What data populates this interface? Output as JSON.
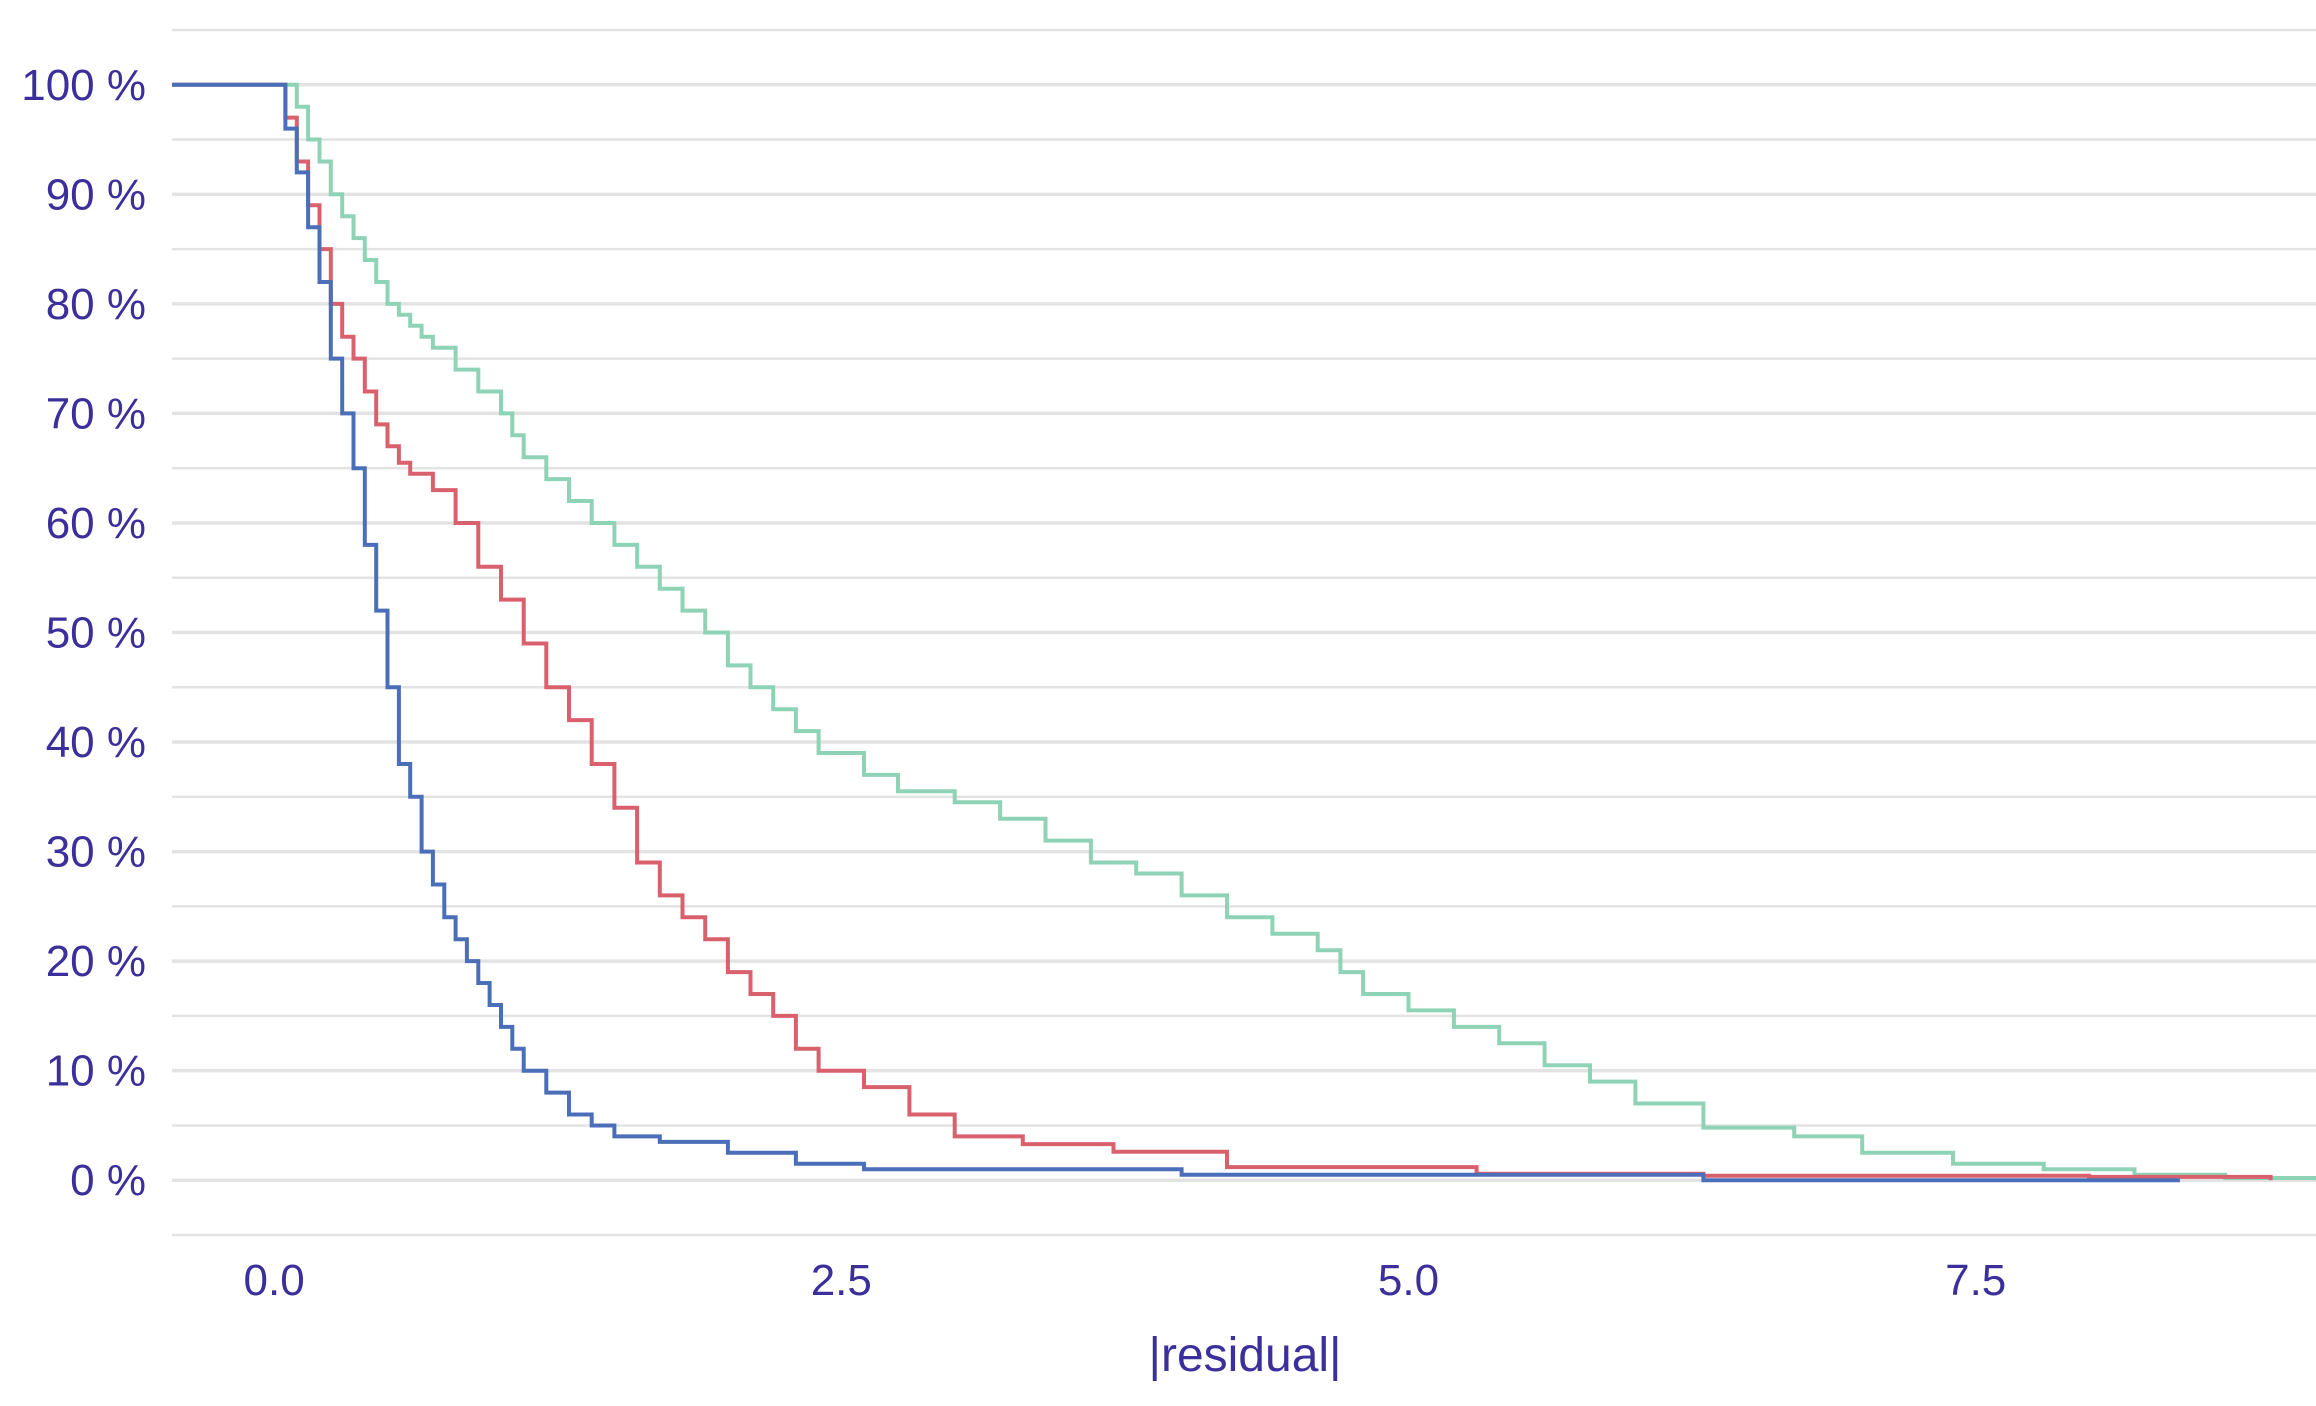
{
  "chart_data": {
    "type": "line",
    "title": "",
    "xlabel": "|residual|",
    "ylabel": "",
    "xlim": [
      -0.45,
      9.0
    ],
    "ylim": [
      -0.05,
      1.05
    ],
    "grid": true,
    "legend": "none",
    "x_ticks": [
      {
        "value": 0.0,
        "label": "0.0"
      },
      {
        "value": 2.5,
        "label": "2.5"
      },
      {
        "value": 5.0,
        "label": "5.0"
      },
      {
        "value": 7.5,
        "label": "7.5"
      }
    ],
    "y_ticks": [
      {
        "value": 0.0,
        "label": "0 %"
      },
      {
        "value": 0.1,
        "label": "10 %"
      },
      {
        "value": 0.2,
        "label": "20 %"
      },
      {
        "value": 0.3,
        "label": "30 %"
      },
      {
        "value": 0.4,
        "label": "40 %"
      },
      {
        "value": 0.5,
        "label": "50 %"
      },
      {
        "value": 0.6,
        "label": "60 %"
      },
      {
        "value": 0.7,
        "label": "70 %"
      },
      {
        "value": 0.8,
        "label": "80 %"
      },
      {
        "value": 0.9,
        "label": "90 %"
      },
      {
        "value": 1.0,
        "label": "100 %"
      }
    ],
    "series": [
      {
        "color": "#8fd3b6",
        "x": [
          -0.45,
          0.05,
          0.1,
          0.15,
          0.2,
          0.25,
          0.3,
          0.35,
          0.4,
          0.45,
          0.5,
          0.55,
          0.6,
          0.65,
          0.7,
          0.8,
          0.9,
          1.0,
          1.05,
          1.1,
          1.2,
          1.3,
          1.4,
          1.5,
          1.6,
          1.7,
          1.8,
          1.9,
          2.0,
          2.1,
          2.2,
          2.3,
          2.4,
          2.6,
          2.75,
          3.0,
          3.2,
          3.4,
          3.6,
          3.8,
          4.0,
          4.2,
          4.4,
          4.6,
          4.7,
          4.8,
          5.0,
          5.2,
          5.4,
          5.6,
          5.8,
          6.0,
          6.3,
          6.7,
          7.0,
          7.4,
          7.8,
          8.2,
          8.6,
          9.0
        ],
        "y": [
          1.0,
          1.0,
          0.98,
          0.95,
          0.93,
          0.9,
          0.88,
          0.86,
          0.84,
          0.82,
          0.8,
          0.79,
          0.78,
          0.77,
          0.76,
          0.74,
          0.72,
          0.7,
          0.68,
          0.66,
          0.64,
          0.62,
          0.6,
          0.58,
          0.56,
          0.54,
          0.52,
          0.5,
          0.47,
          0.45,
          0.43,
          0.41,
          0.39,
          0.37,
          0.355,
          0.345,
          0.33,
          0.31,
          0.29,
          0.28,
          0.26,
          0.24,
          0.225,
          0.21,
          0.19,
          0.17,
          0.155,
          0.14,
          0.125,
          0.105,
          0.09,
          0.07,
          0.048,
          0.04,
          0.025,
          0.015,
          0.01,
          0.005,
          0.002,
          0.0
        ]
      },
      {
        "color": "#d9606d",
        "x": [
          -0.45,
          0.0,
          0.05,
          0.1,
          0.15,
          0.2,
          0.25,
          0.3,
          0.35,
          0.4,
          0.45,
          0.5,
          0.55,
          0.6,
          0.7,
          0.8,
          0.9,
          1.0,
          1.1,
          1.2,
          1.3,
          1.4,
          1.5,
          1.6,
          1.7,
          1.8,
          1.9,
          2.0,
          2.1,
          2.2,
          2.3,
          2.4,
          2.6,
          2.8,
          3.0,
          3.3,
          3.7,
          4.2,
          5.3,
          6.3,
          8.0,
          8.8
        ],
        "y": [
          1.0,
          1.0,
          0.97,
          0.93,
          0.89,
          0.85,
          0.8,
          0.77,
          0.75,
          0.72,
          0.69,
          0.67,
          0.655,
          0.645,
          0.63,
          0.6,
          0.56,
          0.53,
          0.49,
          0.45,
          0.42,
          0.38,
          0.34,
          0.29,
          0.26,
          0.24,
          0.22,
          0.19,
          0.17,
          0.15,
          0.12,
          0.1,
          0.085,
          0.06,
          0.04,
          0.033,
          0.026,
          0.012,
          0.006,
          0.004,
          0.003,
          0.0
        ]
      },
      {
        "color": "#4a6fb8",
        "x": [
          -0.45,
          0.0,
          0.05,
          0.1,
          0.15,
          0.2,
          0.25,
          0.3,
          0.35,
          0.4,
          0.45,
          0.5,
          0.55,
          0.6,
          0.65,
          0.7,
          0.75,
          0.8,
          0.85,
          0.9,
          0.95,
          1.0,
          1.05,
          1.1,
          1.2,
          1.3,
          1.4,
          1.5,
          1.7,
          2.0,
          2.3,
          2.6,
          4.0,
          6.3,
          8.4
        ],
        "y": [
          1.0,
          1.0,
          0.96,
          0.92,
          0.87,
          0.82,
          0.75,
          0.7,
          0.65,
          0.58,
          0.52,
          0.45,
          0.38,
          0.35,
          0.3,
          0.27,
          0.24,
          0.22,
          0.2,
          0.18,
          0.16,
          0.14,
          0.12,
          0.1,
          0.08,
          0.06,
          0.05,
          0.04,
          0.035,
          0.025,
          0.015,
          0.01,
          0.005,
          0.0,
          0.0
        ]
      }
    ]
  }
}
